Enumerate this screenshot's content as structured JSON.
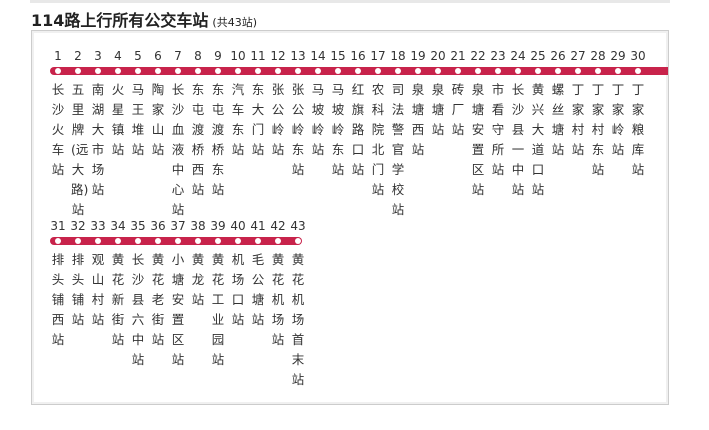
{
  "title": "114路上行所有公交车站",
  "count": "(共43站)",
  "line_color": "#c8234b",
  "stations": [
    {
      "n": "1",
      "name": "长沙火车站"
    },
    {
      "n": "2",
      "name": "五里牌(远大路)站"
    },
    {
      "n": "3",
      "name": "南湖大市场站"
    },
    {
      "n": "4",
      "name": "火星镇站"
    },
    {
      "n": "5",
      "name": "马王堆站"
    },
    {
      "n": "6",
      "name": "陶家山站"
    },
    {
      "n": "7",
      "name": "长沙血液中心站"
    },
    {
      "n": "8",
      "name": "东屯渡桥西站"
    },
    {
      "n": "9",
      "name": "东屯渡桥东站"
    },
    {
      "n": "10",
      "name": "汽车东站"
    },
    {
      "n": "11",
      "name": "东大门站"
    },
    {
      "n": "12",
      "name": "张公岭站"
    },
    {
      "n": "13",
      "name": "张公岭东站"
    },
    {
      "n": "14",
      "name": "马坡岭站"
    },
    {
      "n": "15",
      "name": "马坡岭东站"
    },
    {
      "n": "16",
      "name": "红旗路口站"
    },
    {
      "n": "17",
      "name": "农科院北门站"
    },
    {
      "n": "18",
      "name": "司法警官学校站"
    },
    {
      "n": "19",
      "name": "泉塘西站"
    },
    {
      "n": "20",
      "name": "泉塘站"
    },
    {
      "n": "21",
      "name": "砖厂站"
    },
    {
      "n": "22",
      "name": "泉塘安置区站"
    },
    {
      "n": "23",
      "name": "市看守所站"
    },
    {
      "n": "24",
      "name": "长沙县一中站"
    },
    {
      "n": "25",
      "name": "黄兴大道口站"
    },
    {
      "n": "26",
      "name": "螺丝塘站"
    },
    {
      "n": "27",
      "name": "丁家村站"
    },
    {
      "n": "28",
      "name": "丁家村东站"
    },
    {
      "n": "29",
      "name": "丁家岭站"
    },
    {
      "n": "30",
      "name": "丁家粮库站"
    },
    {
      "n": "31",
      "name": "排头铺西站"
    },
    {
      "n": "32",
      "name": "排头铺站"
    },
    {
      "n": "33",
      "name": "观山村站"
    },
    {
      "n": "34",
      "name": "黄花新街站"
    },
    {
      "n": "35",
      "name": "长沙县六中站"
    },
    {
      "n": "36",
      "name": "黄花老街站"
    },
    {
      "n": "37",
      "name": "小塘安置区站"
    },
    {
      "n": "38",
      "name": "黄龙站"
    },
    {
      "n": "39",
      "name": "黄花工业园站"
    },
    {
      "n": "40",
      "name": "机场口站"
    },
    {
      "n": "41",
      "name": "毛公塘站"
    },
    {
      "n": "42",
      "name": "黄花机场站"
    },
    {
      "n": "43",
      "name": "黄花机场首末站"
    }
  ]
}
